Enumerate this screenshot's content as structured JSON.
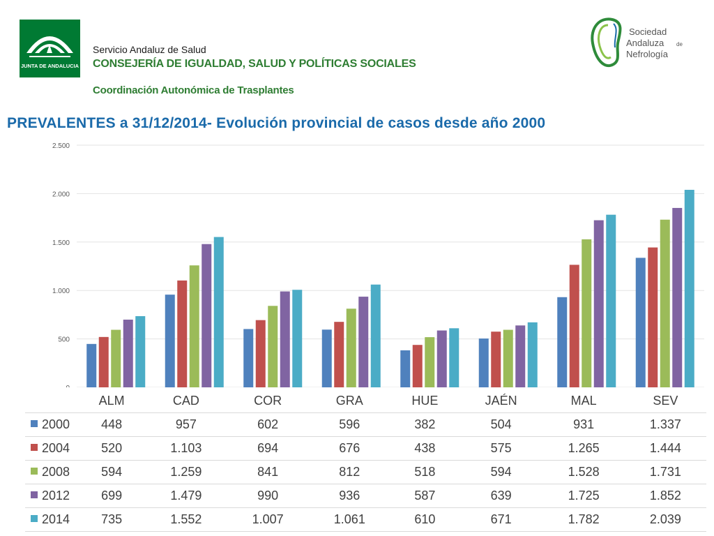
{
  "header": {
    "service": "Servicio Andaluz de Salud",
    "consejeria": "CONSEJERÍA DE IGUALDAD, SALUD Y POLÍTICAS SOCIALES",
    "coordinacion": "Coordinación Autonómica de Trasplantes",
    "junta_logo_text": "JUNTA DE ANDALUCIA",
    "sane_logo_lines": [
      "Sociedad",
      "Andaluza",
      "de",
      "Nefrología"
    ]
  },
  "colors": {
    "title": "#1a6aaa",
    "junta_green": "#007a33",
    "series": [
      "#4f81bd",
      "#c0504d",
      "#9bbb59",
      "#8064a2",
      "#4bacc6"
    ]
  },
  "chart_data": {
    "type": "bar",
    "title": "PREVALENTES a 31/12/2014- Evolución provincial de casos desde año 2000",
    "categories": [
      "ALM",
      "CAD",
      "COR",
      "GRA",
      "HUE",
      "JAÉN",
      "MAL",
      "SEV"
    ],
    "series": [
      {
        "name": "2000",
        "values": [
          448,
          957,
          602,
          596,
          382,
          504,
          931,
          1337
        ],
        "labels": [
          "448",
          "957",
          "602",
          "596",
          "382",
          "504",
          "931",
          "1.337"
        ]
      },
      {
        "name": "2004",
        "values": [
          520,
          1103,
          694,
          676,
          438,
          575,
          1265,
          1444
        ],
        "labels": [
          "520",
          "1.103",
          "694",
          "676",
          "438",
          "575",
          "1.265",
          "1.444"
        ]
      },
      {
        "name": "2008",
        "values": [
          594,
          1259,
          841,
          812,
          518,
          594,
          1528,
          1731
        ],
        "labels": [
          "594",
          "1.259",
          "841",
          "812",
          "518",
          "594",
          "1.528",
          "1.731"
        ]
      },
      {
        "name": "2012",
        "values": [
          699,
          1479,
          990,
          936,
          587,
          639,
          1725,
          1852
        ],
        "labels": [
          "699",
          "1.479",
          "990",
          "936",
          "587",
          "639",
          "1.725",
          "1.852"
        ]
      },
      {
        "name": "2014",
        "values": [
          735,
          1552,
          1007,
          1061,
          610,
          671,
          1782,
          2039
        ],
        "labels": [
          "735",
          "1.552",
          "1.007",
          "1.061",
          "610",
          "671",
          "1.782",
          "2.039"
        ]
      }
    ],
    "ylim": [
      0,
      2500
    ],
    "yticks": [
      0,
      500,
      1000,
      1500,
      2000,
      2500
    ],
    "ytick_labels": [
      "0",
      "500",
      "1.000",
      "1.500",
      "2.000",
      "2.500"
    ],
    "grid": true,
    "legend": "data-table-left"
  }
}
